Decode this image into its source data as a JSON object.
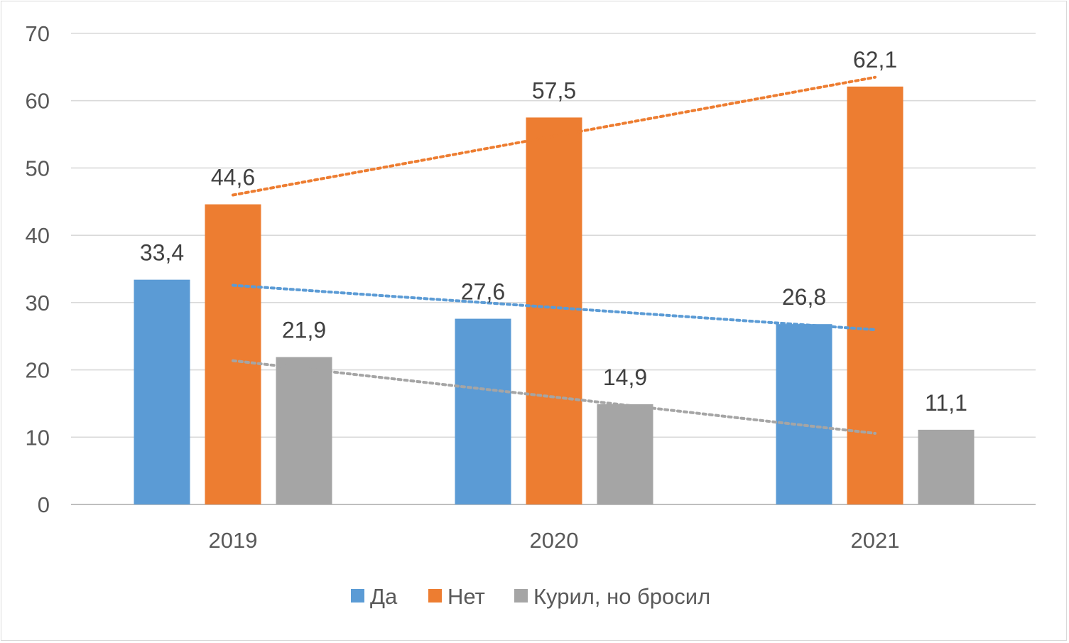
{
  "chart_data": {
    "type": "bar",
    "categories": [
      "2019",
      "2020",
      "2021"
    ],
    "series": [
      {
        "name": "Да",
        "values": [
          33.4,
          27.6,
          26.8
        ],
        "labels": [
          "33,4",
          "27,6",
          "26,8"
        ],
        "color": "#5b9bd5",
        "trend_color": "#5b9bd5"
      },
      {
        "name": "Нет",
        "values": [
          44.6,
          57.5,
          62.1
        ],
        "labels": [
          "44,6",
          "57,5",
          "62,1"
        ],
        "color": "#ed7d31",
        "trend_color": "#ed7d31"
      },
      {
        "name": "Курил, но бросил",
        "values": [
          21.9,
          14.9,
          11.1
        ],
        "labels": [
          "21,9",
          "14,9",
          "11,1"
        ],
        "color": "#a5a5a5",
        "trend_color": "#a5a5a5"
      }
    ],
    "ylim": [
      0,
      70
    ],
    "yticks": [
      0,
      10,
      20,
      30,
      40,
      50,
      60,
      70
    ],
    "ytick_labels": [
      "0",
      "10",
      "20",
      "30",
      "40",
      "50",
      "60",
      "70"
    ],
    "grid": true,
    "trendlines": "linear, dotted",
    "legend_position": "bottom",
    "gridline_color": "#d9d9d9",
    "axis_line_color": "#bfbfbf"
  }
}
